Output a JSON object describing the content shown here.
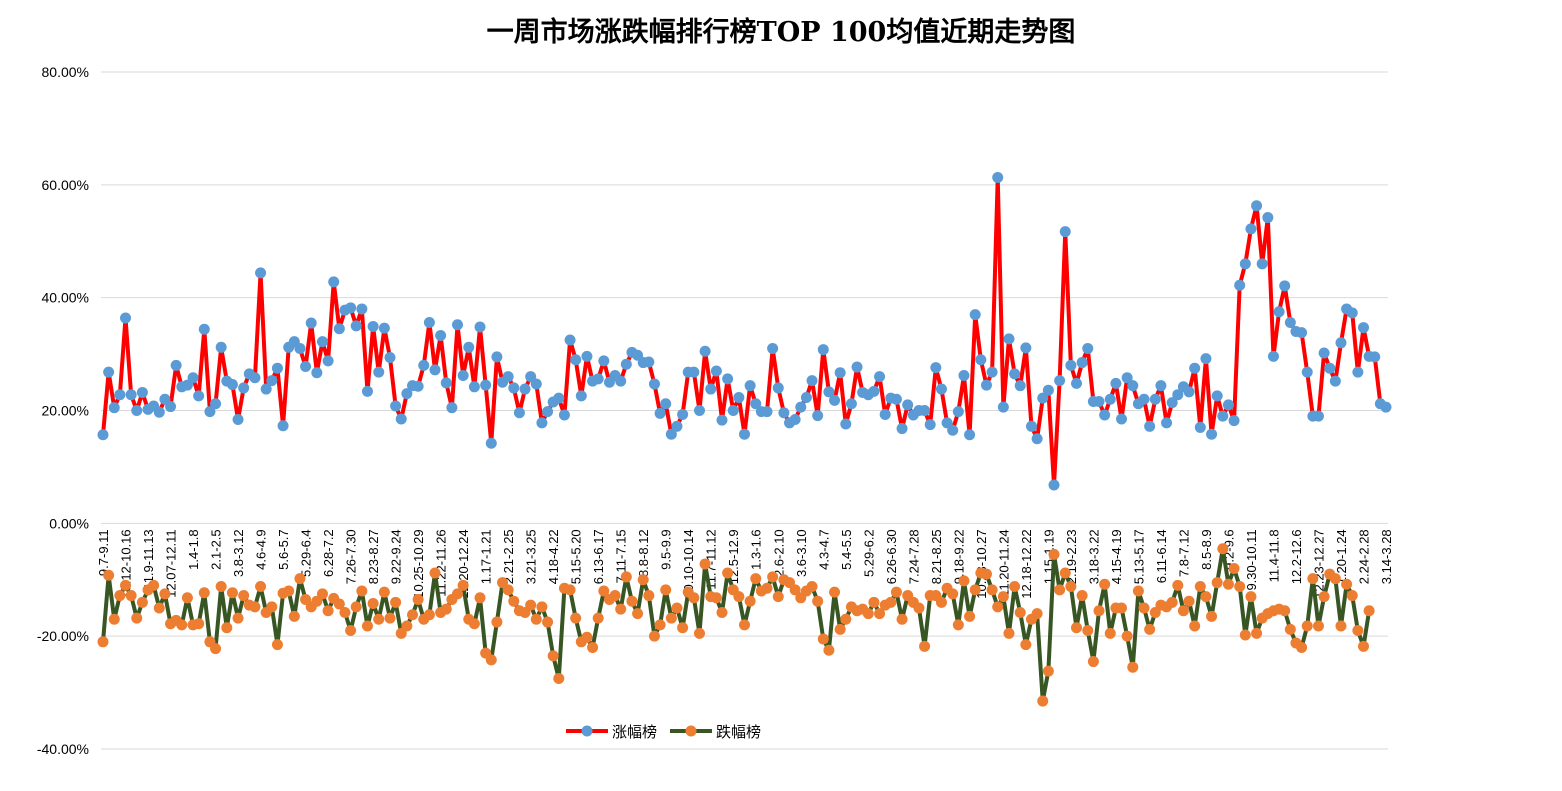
{
  "chart_data": {
    "type": "line",
    "title": "一周市场涨跌幅排行榜TOP 100均值近期走势图",
    "ylim": [
      -0.4,
      0.8
    ],
    "y_ticks": [
      "80.00%",
      "60.00%",
      "40.00%",
      "20.00%",
      "0.00%",
      "-20.00%",
      "-40.00%"
    ],
    "y_tick_values": [
      0.8,
      0.6,
      0.4,
      0.2,
      0.0,
      -0.2,
      -0.4
    ],
    "grid": true,
    "legend_position": "bottom",
    "x_tick_labels": [
      "9.7-9.11",
      "10.12-10.16",
      "11.9-11.13",
      "12.07-12.11",
      "1.4-1.8",
      "2.1-2.5",
      "3.8-3.12",
      "4.6-4.9",
      "5.6-5.7",
      "5.29-6.4",
      "6.28-7.2",
      "7.26-7.30",
      "8.23-8.27",
      "9.22-9.24",
      "10.25-10.29",
      "11.22-11.26",
      "12.20-12.24",
      "1.17-1.21",
      "2.21-2.25",
      "3.21-3.25",
      "4.18-4.22",
      "5.15-5.20",
      "6.13-6.17",
      "7.11-7.15",
      "8.8-8.12",
      "9.5-9.9",
      "10.10-10.14",
      "11.7-11.12",
      "12.5-12.9",
      "1.3-1.6",
      "2.6-2.10",
      "3.6-3.10",
      "4.3-4.7",
      "5.4-5.5",
      "5.29-6.2",
      "6.26-6.30",
      "7.24-7.28",
      "8.21-8.25",
      "9.18-9.22",
      "10.23-10.27",
      "11.20-11.24",
      "12.18-12.22",
      "1.15-1.19",
      "2.19-2.23",
      "3.18-3.22",
      "4.15-4.19",
      "5.13-5.17",
      "6.11-6.14",
      "7.8-7.12",
      "8.5-8.9",
      "9.2-9.6",
      "9.30-10.11",
      "11.4-11.8",
      "12.2-12.6",
      "12.23-12.27",
      "1.20-1.24",
      "2.24-2.28",
      "3.14-3.28"
    ],
    "series": [
      {
        "name": "涨幅榜",
        "line_color": "#ff0000",
        "marker_color": "#5b9bd5",
        "values": [
          0.157,
          0.268,
          0.205,
          0.228,
          0.364,
          0.228,
          0.2,
          0.232,
          0.202,
          0.208,
          0.197,
          0.22,
          0.207,
          0.28,
          0.242,
          0.245,
          0.258,
          0.226,
          0.344,
          0.198,
          0.212,
          0.312,
          0.252,
          0.246,
          0.184,
          0.24,
          0.265,
          0.258,
          0.444,
          0.238,
          0.253,
          0.275,
          0.173,
          0.312,
          0.322,
          0.31,
          0.278,
          0.355,
          0.267,
          0.322,
          0.288,
          0.428,
          0.345,
          0.378,
          0.382,
          0.35,
          0.38,
          0.234,
          0.349,
          0.268,
          0.346,
          0.294,
          0.208,
          0.185,
          0.23,
          0.244,
          0.243,
          0.28,
          0.356,
          0.272,
          0.333,
          0.249,
          0.205,
          0.352,
          0.262,
          0.312,
          0.242,
          0.348,
          0.245,
          0.142,
          0.295,
          0.25,
          0.26,
          0.24,
          0.196,
          0.238,
          0.26,
          0.247,
          0.178,
          0.198,
          0.215,
          0.222,
          0.192,
          0.325,
          0.29,
          0.226,
          0.296,
          0.252,
          0.256,
          0.288,
          0.25,
          0.262,
          0.252,
          0.282,
          0.303,
          0.298,
          0.285,
          0.286,
          0.247,
          0.195,
          0.212,
          0.158,
          0.172,
          0.193,
          0.268,
          0.268,
          0.2,
          0.305,
          0.238,
          0.27,
          0.183,
          0.256,
          0.2,
          0.223,
          0.158,
          0.244,
          0.212,
          0.198,
          0.198,
          0.31,
          0.24,
          0.196,
          0.178,
          0.184,
          0.206,
          0.223,
          0.253,
          0.191,
          0.308,
          0.233,
          0.218,
          0.267,
          0.176,
          0.212,
          0.277,
          0.232,
          0.228,
          0.234,
          0.26,
          0.193,
          0.222,
          0.22,
          0.168,
          0.21,
          0.192,
          0.2,
          0.2,
          0.175,
          0.276,
          0.238,
          0.178,
          0.165,
          0.198,
          0.262,
          0.157,
          0.37,
          0.29,
          0.245,
          0.268,
          0.613,
          0.206,
          0.327,
          0.265,
          0.244,
          0.311,
          0.172,
          0.15,
          0.222,
          0.236,
          0.068,
          0.253,
          0.517,
          0.28,
          0.248,
          0.285,
          0.31,
          0.216,
          0.216,
          0.192,
          0.22,
          0.248,
          0.185,
          0.258,
          0.244,
          0.212,
          0.22,
          0.172,
          0.22,
          0.244,
          0.178,
          0.214,
          0.228,
          0.242,
          0.233,
          0.275,
          0.17,
          0.292,
          0.158,
          0.226,
          0.19,
          0.21,
          0.182,
          0.422,
          0.46,
          0.522,
          0.563,
          0.46,
          0.542,
          0.296,
          0.375,
          0.421,
          0.356,
          0.34,
          0.338,
          0.268,
          0.19,
          0.19,
          0.302,
          0.275,
          0.252,
          0.32,
          0.38,
          0.373,
          0.268,
          0.347,
          0.296,
          0.295,
          0.212,
          0.206
        ]
      },
      {
        "name": "跌幅榜",
        "line_color": "#375623",
        "marker_color": "#ed7d31",
        "values": [
          -0.21,
          -0.092,
          -0.17,
          -0.128,
          -0.11,
          -0.128,
          -0.168,
          -0.14,
          -0.118,
          -0.11,
          -0.15,
          -0.125,
          -0.178,
          -0.172,
          -0.18,
          -0.132,
          -0.18,
          -0.178,
          -0.123,
          -0.21,
          -0.222,
          -0.112,
          -0.185,
          -0.123,
          -0.168,
          -0.128,
          -0.145,
          -0.148,
          -0.112,
          -0.158,
          -0.148,
          -0.215,
          -0.124,
          -0.12,
          -0.165,
          -0.098,
          -0.135,
          -0.148,
          -0.138,
          -0.125,
          -0.155,
          -0.133,
          -0.143,
          -0.158,
          -0.19,
          -0.148,
          -0.12,
          -0.182,
          -0.142,
          -0.17,
          -0.122,
          -0.168,
          -0.14,
          -0.195,
          -0.182,
          -0.162,
          -0.135,
          -0.17,
          -0.162,
          -0.088,
          -0.158,
          -0.152,
          -0.135,
          -0.125,
          -0.11,
          -0.17,
          -0.178,
          -0.132,
          -0.23,
          -0.242,
          -0.175,
          -0.105,
          -0.118,
          -0.138,
          -0.155,
          -0.158,
          -0.145,
          -0.17,
          -0.148,
          -0.175,
          -0.235,
          -0.275,
          -0.115,
          -0.118,
          -0.168,
          -0.21,
          -0.202,
          -0.22,
          -0.168,
          -0.12,
          -0.135,
          -0.128,
          -0.152,
          -0.095,
          -0.138,
          -0.16,
          -0.1,
          -0.128,
          -0.2,
          -0.18,
          -0.118,
          -0.168,
          -0.15,
          -0.185,
          -0.122,
          -0.132,
          -0.195,
          -0.072,
          -0.13,
          -0.132,
          -0.158,
          -0.088,
          -0.118,
          -0.13,
          -0.18,
          -0.138,
          -0.098,
          -0.12,
          -0.115,
          -0.095,
          -0.13,
          -0.1,
          -0.105,
          -0.118,
          -0.132,
          -0.12,
          -0.112,
          -0.138,
          -0.205,
          -0.225,
          -0.122,
          -0.188,
          -0.17,
          -0.148,
          -0.155,
          -0.152,
          -0.16,
          -0.14,
          -0.16,
          -0.145,
          -0.14,
          -0.122,
          -0.17,
          -0.128,
          -0.14,
          -0.15,
          -0.218,
          -0.128,
          -0.128,
          -0.14,
          -0.115,
          -0.125,
          -0.18,
          -0.102,
          -0.165,
          -0.118,
          -0.088,
          -0.09,
          -0.118,
          -0.148,
          -0.13,
          -0.195,
          -0.112,
          -0.158,
          -0.215,
          -0.17,
          -0.16,
          -0.315,
          -0.262,
          -0.055,
          -0.118,
          -0.088,
          -0.112,
          -0.185,
          -0.128,
          -0.19,
          -0.245,
          -0.155,
          -0.108,
          -0.195,
          -0.15,
          -0.15,
          -0.2,
          -0.255,
          -0.12,
          -0.15,
          -0.188,
          -0.158,
          -0.145,
          -0.148,
          -0.14,
          -0.11,
          -0.155,
          -0.138,
          -0.182,
          -0.112,
          -0.13,
          -0.165,
          -0.105,
          -0.045,
          -0.108,
          -0.08,
          -0.112,
          -0.198,
          -0.13,
          -0.195,
          -0.168,
          -0.16,
          -0.155,
          -0.152,
          -0.155,
          -0.188,
          -0.212,
          -0.22,
          -0.182,
          -0.098,
          -0.182,
          -0.13,
          -0.09,
          -0.098,
          -0.182,
          -0.108,
          -0.128,
          -0.19,
          -0.218,
          -0.155
        ]
      }
    ]
  }
}
